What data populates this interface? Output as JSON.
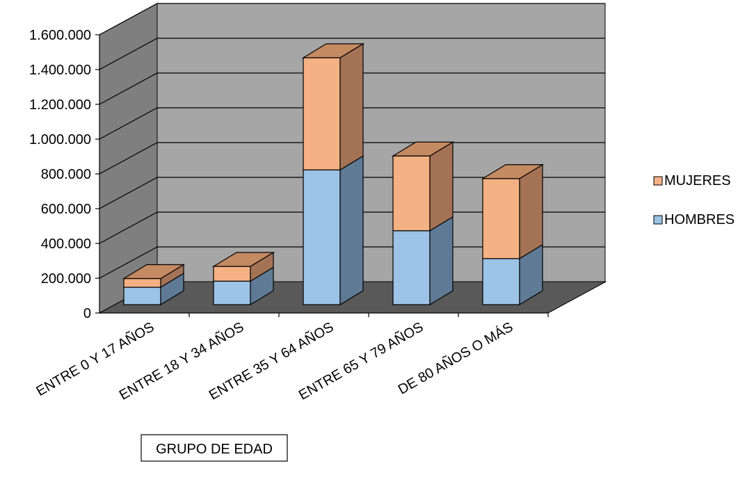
{
  "chart_data": {
    "type": "bar",
    "stacked": true,
    "three_d": true,
    "categories": [
      "ENTRE 0 Y 17 AÑOS",
      "ENTRE 18 Y 34 AÑOS",
      "ENTRE 35 Y 64 AÑOS",
      "ENTRE 65 Y 79 AÑOS",
      "DE 80 AÑOS O MÁS"
    ],
    "series": [
      {
        "name": "HOMBRES",
        "values": [
          100000,
          135000,
          775000,
          425000,
          265000
        ],
        "color": "#9DC3E6",
        "side_color": "#5F7A95",
        "top_color": "#8AAAC8"
      },
      {
        "name": "MUJERES",
        "values": [
          50000,
          85000,
          645000,
          430000,
          460000
        ],
        "color": "#F4B183",
        "side_color": "#A47355",
        "top_color": "#C48A62"
      }
    ],
    "yticks": [
      "0",
      "200.000",
      "400.000",
      "600.000",
      "800.000",
      "1.000.000",
      "1.200.000",
      "1.400.000",
      "1.600.000"
    ],
    "ylim": [
      0,
      1600000
    ],
    "xlabel": "GRUPO DE EDAD",
    "legend": "right",
    "grid": true,
    "colors": {
      "back_wall": "#A6A6A6",
      "side_wall": "#7F7F7F",
      "floor": "#595959"
    }
  }
}
